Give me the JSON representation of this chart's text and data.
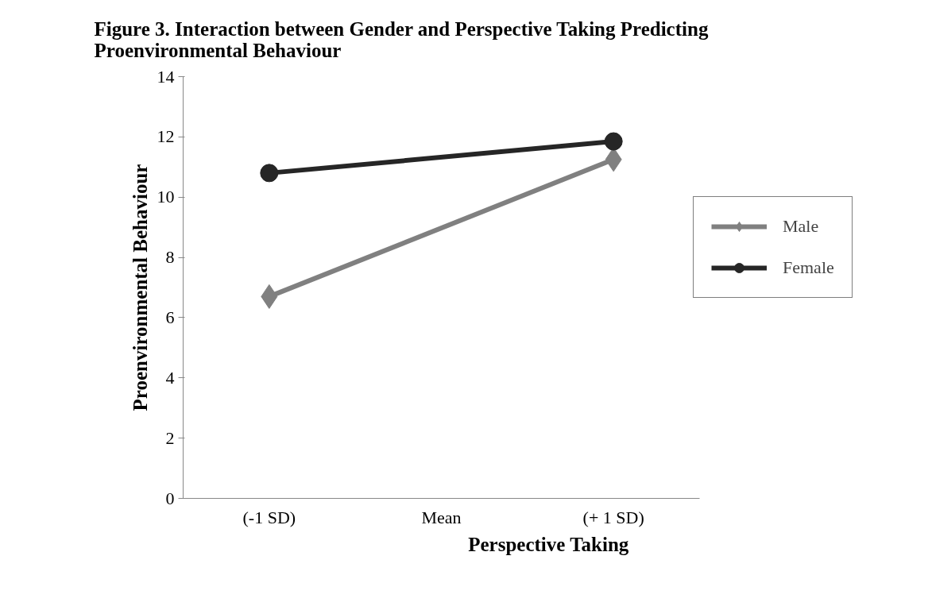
{
  "chart_data": {
    "type": "line",
    "title": "Figure 3. Interaction between Gender and Perspective Taking Predicting Proenvironmental Behaviour",
    "xlabel": "Perspective Taking",
    "ylabel": "Proenvironmental Behaviour",
    "categories": [
      "(-1 SD)",
      "Mean",
      "(+ 1 SD)"
    ],
    "series": [
      {
        "name": "Male",
        "color": "#808080",
        "marker": "diamond",
        "values": [
          6.7,
          null,
          11.25
        ]
      },
      {
        "name": "Female",
        "color": "#262626",
        "marker": "circle",
        "values": [
          10.8,
          null,
          11.85
        ]
      }
    ],
    "ylim": [
      0,
      14
    ],
    "yticks": [
      0,
      2,
      4,
      6,
      8,
      10,
      12,
      14
    ],
    "grid": false,
    "legend": "right",
    "line_style": "solid"
  }
}
